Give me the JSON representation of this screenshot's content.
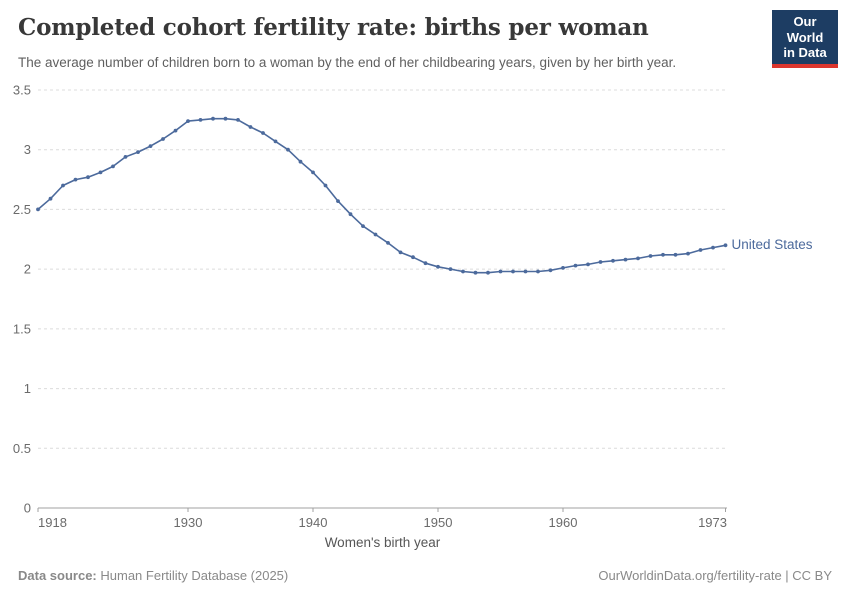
{
  "header": {
    "title": "Completed cohort fertility rate: births per woman",
    "subtitle": "The average number of children born to a woman by the end of her childbearing years, given by her birth year."
  },
  "logo": {
    "line1": "Our World",
    "line2": "in Data",
    "bg_color": "#1d3d63",
    "bar_color": "#dc362e"
  },
  "chart_data": {
    "type": "line",
    "title": "Completed cohort fertility rate: births per woman",
    "xlabel": "Women's birth year",
    "ylabel": "",
    "xlim": [
      1918,
      1973
    ],
    "ylim": [
      0,
      3.5
    ],
    "x_ticks": [
      1918,
      1930,
      1940,
      1950,
      1960,
      1973
    ],
    "y_ticks": [
      0,
      0.5,
      1,
      1.5,
      2,
      2.5,
      3,
      3.5
    ],
    "grid": "horizontal dashed",
    "legend_position": "end-of-line label",
    "x": [
      1918,
      1919,
      1920,
      1921,
      1922,
      1923,
      1924,
      1925,
      1926,
      1927,
      1928,
      1929,
      1930,
      1931,
      1932,
      1933,
      1934,
      1935,
      1936,
      1937,
      1938,
      1939,
      1940,
      1941,
      1942,
      1943,
      1944,
      1945,
      1946,
      1947,
      1948,
      1949,
      1950,
      1951,
      1952,
      1953,
      1954,
      1955,
      1956,
      1957,
      1958,
      1959,
      1960,
      1961,
      1962,
      1963,
      1964,
      1965,
      1966,
      1967,
      1968,
      1969,
      1970,
      1971,
      1972,
      1973
    ],
    "series": [
      {
        "name": "United States",
        "color": "#4c6a9c",
        "values": [
          2.5,
          2.59,
          2.7,
          2.75,
          2.77,
          2.81,
          2.86,
          2.94,
          2.98,
          3.03,
          3.09,
          3.16,
          3.24,
          3.25,
          3.26,
          3.26,
          3.25,
          3.19,
          3.14,
          3.07,
          3.0,
          2.9,
          2.81,
          2.7,
          2.57,
          2.46,
          2.36,
          2.29,
          2.22,
          2.14,
          2.1,
          2.05,
          2.02,
          2.0,
          1.98,
          1.97,
          1.97,
          1.98,
          1.98,
          1.98,
          1.98,
          1.99,
          2.01,
          2.03,
          2.04,
          2.06,
          2.07,
          2.08,
          2.09,
          2.11,
          2.12,
          2.12,
          2.13,
          2.16,
          2.18,
          2.2
        ]
      }
    ],
    "gridline_color": "#dcdcdc",
    "axis_color": "#a1a1a1",
    "tick_label_color": "#6b6b6b"
  },
  "footer": {
    "source_label": "Data source:",
    "source_value": "Human Fertility Database (2025)",
    "credit": "OurWorldinData.org/fertility-rate | CC BY"
  }
}
